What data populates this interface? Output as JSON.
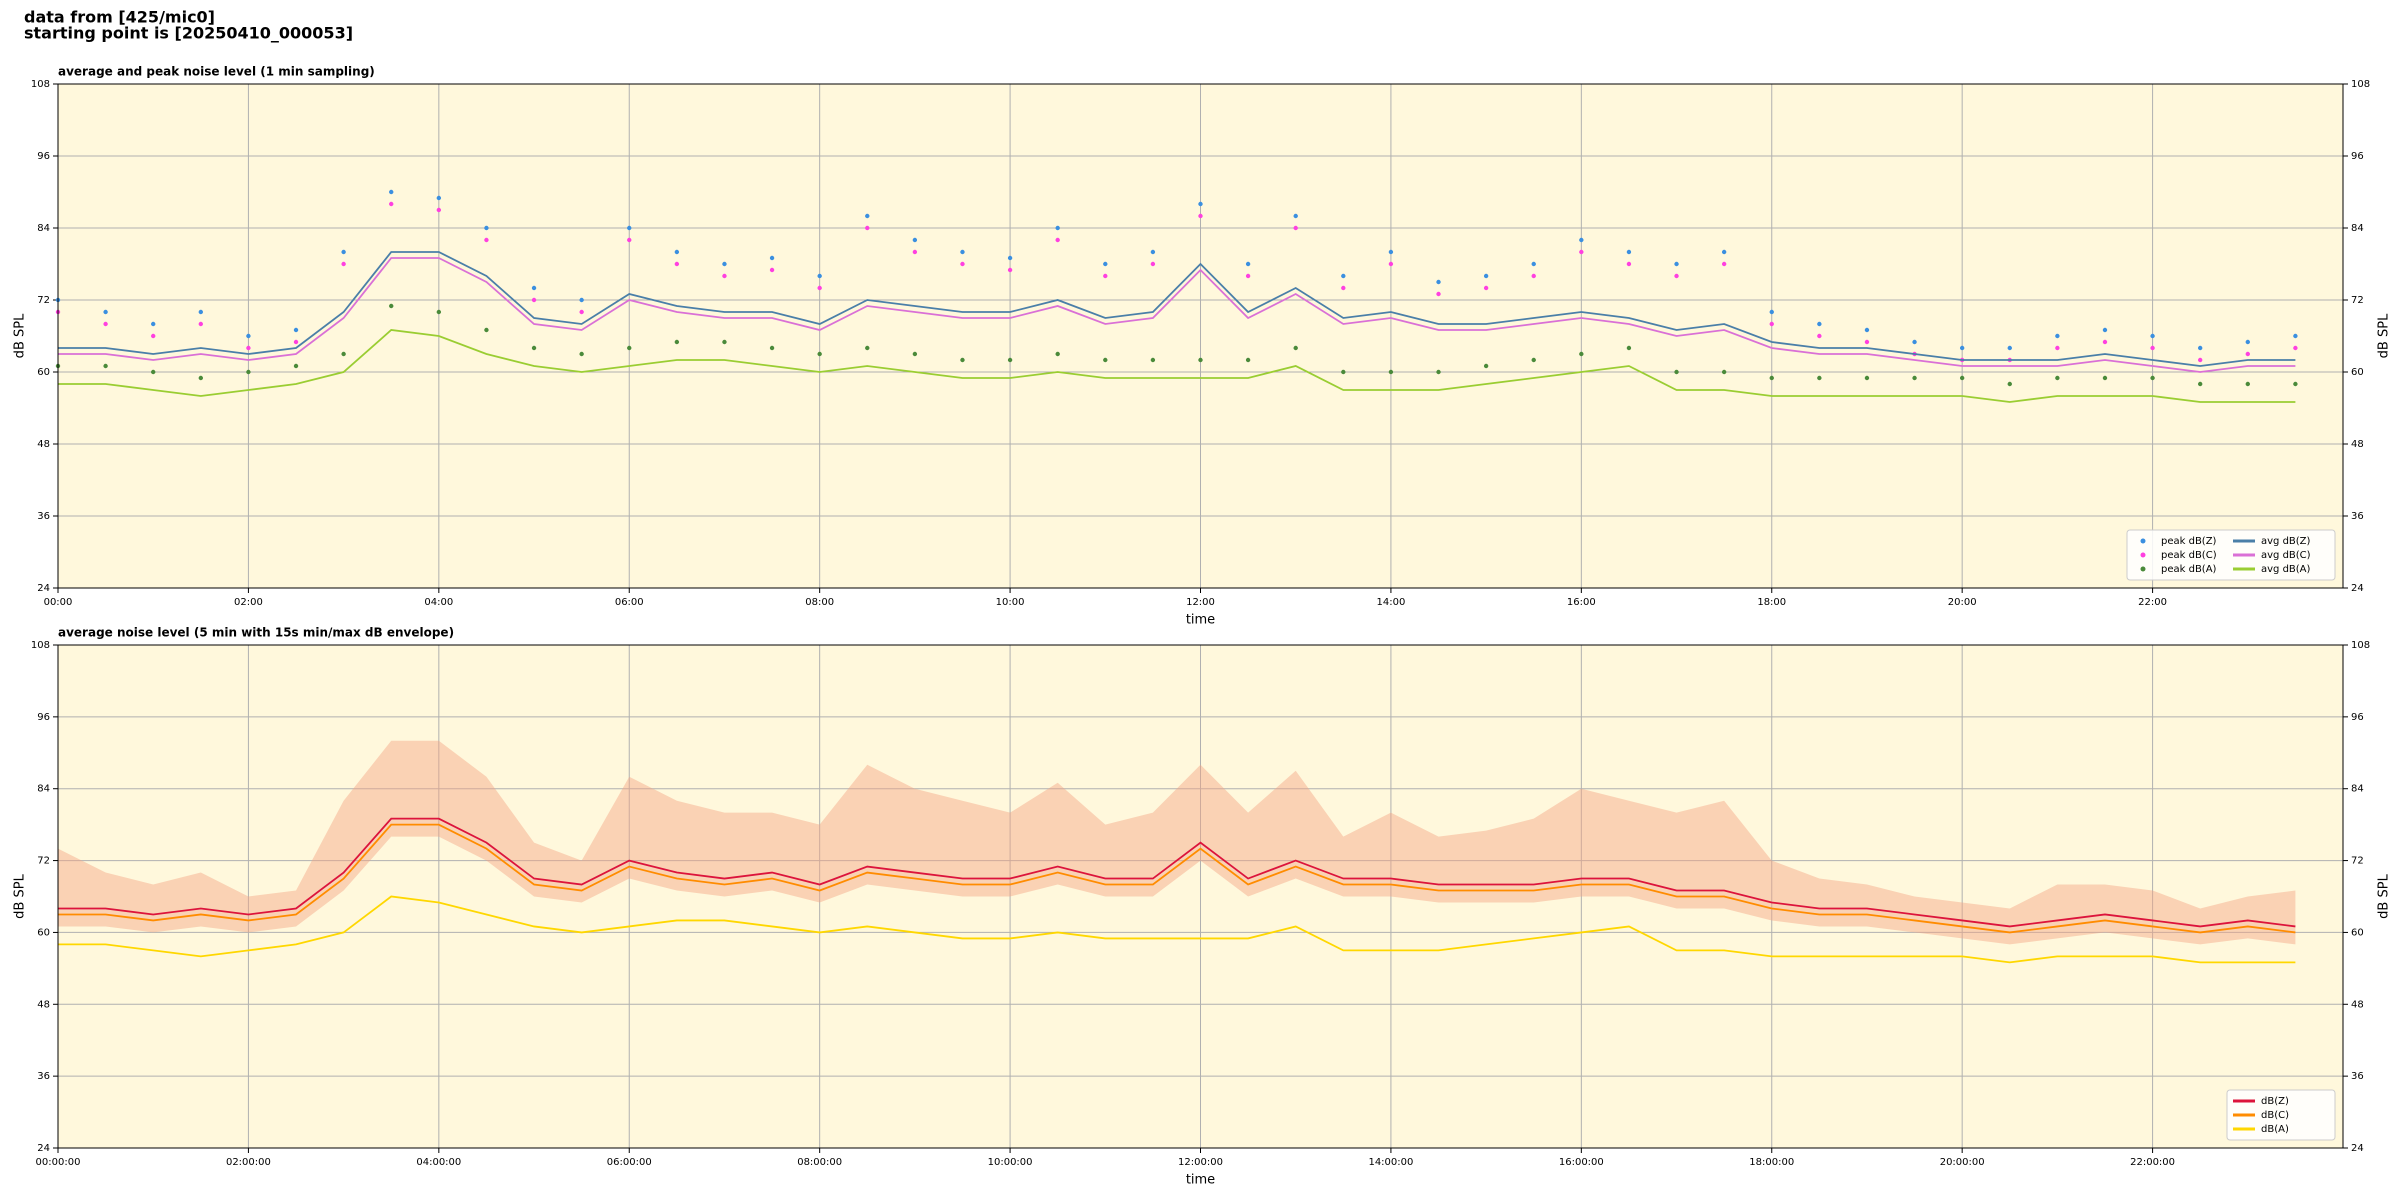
{
  "header": {
    "source": "data from [425/mic0]",
    "start": "starting point is [20250410_000053]"
  },
  "chart_data": [
    {
      "type": "line",
      "title": "average and peak noise level (1 min sampling)",
      "x_label": "time",
      "y_label": "dB SPL",
      "y2_label": "dB SPL",
      "background": "#fff8dc",
      "grid": true,
      "legend": "lower right",
      "legend_columns": 2,
      "xlim": [
        0,
        24
      ],
      "xticks": [
        {
          "value": 0,
          "label": "00:00"
        },
        {
          "value": 2,
          "label": "02:00"
        },
        {
          "value": 4,
          "label": "04:00"
        },
        {
          "value": 6,
          "label": "06:00"
        },
        {
          "value": 8,
          "label": "08:00"
        },
        {
          "value": 10,
          "label": "10:00"
        },
        {
          "value": 12,
          "label": "12:00"
        },
        {
          "value": 14,
          "label": "14:00"
        },
        {
          "value": 16,
          "label": "16:00"
        },
        {
          "value": 18,
          "label": "18:00"
        },
        {
          "value": 20,
          "label": "20:00"
        },
        {
          "value": 22,
          "label": "22:00"
        }
      ],
      "ylim": [
        24,
        108
      ],
      "yticks": [
        24,
        36,
        48,
        60,
        72,
        84,
        96,
        108
      ],
      "y2lim": [
        24,
        108
      ],
      "y2ticks": [
        24,
        36,
        48,
        60,
        72,
        84,
        96,
        108
      ],
      "x": [
        0,
        0.5,
        1,
        1.5,
        2,
        2.5,
        3,
        3.5,
        4,
        4.5,
        5,
        5.5,
        6,
        6.5,
        7,
        7.5,
        8,
        8.5,
        9,
        9.5,
        10,
        10.5,
        11,
        11.5,
        12,
        12.5,
        13,
        13.5,
        14,
        14.5,
        15,
        15.5,
        16,
        16.5,
        17,
        17.5,
        18,
        18.5,
        19,
        19.5,
        20,
        20.5,
        21,
        21.5,
        22,
        22.5,
        23,
        23.5
      ],
      "series": [
        {
          "name": "peak dB(Z)",
          "kind": "scatter",
          "color": "#3a8fe0",
          "values": [
            72,
            70,
            68,
            70,
            66,
            67,
            80,
            90,
            89,
            84,
            74,
            72,
            84,
            80,
            78,
            79,
            76,
            86,
            82,
            80,
            79,
            84,
            78,
            80,
            88,
            78,
            86,
            76,
            80,
            75,
            76,
            78,
            82,
            80,
            78,
            80,
            70,
            68,
            67,
            65,
            64,
            64,
            66,
            67,
            66,
            64,
            65,
            66
          ]
        },
        {
          "name": "peak dB(C)",
          "kind": "scatter",
          "color": "#ff40e0",
          "values": [
            70,
            68,
            66,
            68,
            64,
            65,
            78,
            88,
            87,
            82,
            72,
            70,
            82,
            78,
            76,
            77,
            74,
            84,
            80,
            78,
            77,
            82,
            76,
            78,
            86,
            76,
            84,
            74,
            78,
            73,
            74,
            76,
            80,
            78,
            76,
            78,
            68,
            66,
            65,
            63,
            62,
            62,
            64,
            65,
            64,
            62,
            63,
            64
          ]
        },
        {
          "name": "peak dB(A)",
          "kind": "scatter",
          "color": "#4a8a3a",
          "values": [
            61,
            61,
            60,
            59,
            60,
            61,
            63,
            71,
            70,
            67,
            64,
            63,
            64,
            65,
            65,
            64,
            63,
            64,
            63,
            62,
            62,
            63,
            62,
            62,
            62,
            62,
            64,
            60,
            60,
            60,
            61,
            62,
            63,
            64,
            60,
            60,
            59,
            59,
            59,
            59,
            59,
            58,
            59,
            59,
            59,
            58,
            58,
            58
          ]
        },
        {
          "name": "avg dB(Z)",
          "kind": "line",
          "color": "#4a7fa8",
          "values": [
            64,
            64,
            63,
            64,
            63,
            64,
            70,
            80,
            80,
            76,
            69,
            68,
            73,
            71,
            70,
            70,
            68,
            72,
            71,
            70,
            70,
            72,
            69,
            70,
            78,
            70,
            74,
            69,
            70,
            68,
            68,
            69,
            70,
            69,
            67,
            68,
            65,
            64,
            64,
            63,
            62,
            62,
            62,
            63,
            62,
            61,
            62,
            62
          ]
        },
        {
          "name": "avg dB(C)",
          "kind": "line",
          "color": "#da70d6",
          "values": [
            63,
            63,
            62,
            63,
            62,
            63,
            69,
            79,
            79,
            75,
            68,
            67,
            72,
            70,
            69,
            69,
            67,
            71,
            70,
            69,
            69,
            71,
            68,
            69,
            77,
            69,
            73,
            68,
            69,
            67,
            67,
            68,
            69,
            68,
            66,
            67,
            64,
            63,
            63,
            62,
            61,
            61,
            61,
            62,
            61,
            60,
            61,
            61
          ]
        },
        {
          "name": "avg dB(A)",
          "kind": "line",
          "color": "#9acd32",
          "values": [
            58,
            58,
            57,
            56,
            57,
            58,
            60,
            67,
            66,
            63,
            61,
            60,
            61,
            62,
            62,
            61,
            60,
            61,
            60,
            59,
            59,
            60,
            59,
            59,
            59,
            59,
            61,
            57,
            57,
            57,
            58,
            59,
            60,
            61,
            57,
            57,
            56,
            56,
            56,
            56,
            56,
            55,
            56,
            56,
            56,
            55,
            55,
            55
          ]
        }
      ]
    },
    {
      "type": "line",
      "title": "average noise level (5 min with 15s min/max dB envelope)",
      "x_label": "time",
      "y_label": "dB SPL",
      "y2_label": "dB SPL",
      "background": "#fff8dc",
      "grid": true,
      "legend": "lower right",
      "legend_columns": 1,
      "xlim": [
        0,
        24
      ],
      "xticks": [
        {
          "value": 0,
          "label": "00:00:00"
        },
        {
          "value": 2,
          "label": "02:00:00"
        },
        {
          "value": 4,
          "label": "04:00:00"
        },
        {
          "value": 6,
          "label": "06:00:00"
        },
        {
          "value": 8,
          "label": "08:00:00"
        },
        {
          "value": 10,
          "label": "10:00:00"
        },
        {
          "value": 12,
          "label": "12:00:00"
        },
        {
          "value": 14,
          "label": "14:00:00"
        },
        {
          "value": 16,
          "label": "16:00:00"
        },
        {
          "value": 18,
          "label": "18:00:00"
        },
        {
          "value": 20,
          "label": "20:00:00"
        },
        {
          "value": 22,
          "label": "22:00:00"
        }
      ],
      "ylim": [
        24,
        108
      ],
      "yticks": [
        24,
        36,
        48,
        60,
        72,
        84,
        96,
        108
      ],
      "y2lim": [
        24,
        108
      ],
      "y2ticks": [
        24,
        36,
        48,
        60,
        72,
        84,
        96,
        108
      ],
      "x": [
        0,
        0.5,
        1,
        1.5,
        2,
        2.5,
        3,
        3.5,
        4,
        4.5,
        5,
        5.5,
        6,
        6.5,
        7,
        7.5,
        8,
        8.5,
        9,
        9.5,
        10,
        10.5,
        11,
        11.5,
        12,
        12.5,
        13,
        13.5,
        14,
        14.5,
        15,
        15.5,
        16,
        16.5,
        17,
        17.5,
        18,
        18.5,
        19,
        19.5,
        20,
        20.5,
        21,
        21.5,
        22,
        22.5,
        23,
        23.5
      ],
      "envelope": {
        "color": "#f4a582",
        "upper": [
          74,
          70,
          68,
          70,
          66,
          67,
          82,
          92,
          92,
          86,
          75,
          72,
          86,
          82,
          80,
          80,
          78,
          88,
          84,
          82,
          80,
          85,
          78,
          80,
          88,
          80,
          87,
          76,
          80,
          76,
          77,
          79,
          84,
          82,
          80,
          82,
          72,
          69,
          68,
          66,
          65,
          64,
          68,
          68,
          67,
          64,
          66,
          67
        ],
        "lower": [
          61,
          61,
          60,
          61,
          60,
          61,
          67,
          76,
          76,
          72,
          66,
          65,
          69,
          67,
          66,
          67,
          65,
          68,
          67,
          66,
          66,
          68,
          66,
          66,
          72,
          66,
          69,
          66,
          66,
          65,
          65,
          65,
          66,
          66,
          64,
          64,
          62,
          61,
          61,
          60,
          59,
          58,
          59,
          60,
          59,
          58,
          59,
          58
        ]
      },
      "series": [
        {
          "name": "dB(Z)",
          "kind": "line",
          "color": "#dc143c",
          "values": [
            64,
            64,
            63,
            64,
            63,
            64,
            70,
            79,
            79,
            75,
            69,
            68,
            72,
            70,
            69,
            70,
            68,
            71,
            70,
            69,
            69,
            71,
            69,
            69,
            75,
            69,
            72,
            69,
            69,
            68,
            68,
            68,
            69,
            69,
            67,
            67,
            65,
            64,
            64,
            63,
            62,
            61,
            62,
            63,
            62,
            61,
            62,
            61
          ]
        },
        {
          "name": "dB(C)",
          "kind": "line",
          "color": "#ff8c00",
          "values": [
            63,
            63,
            62,
            63,
            62,
            63,
            69,
            78,
            78,
            74,
            68,
            67,
            71,
            69,
            68,
            69,
            67,
            70,
            69,
            68,
            68,
            70,
            68,
            68,
            74,
            68,
            71,
            68,
            68,
            67,
            67,
            67,
            68,
            68,
            66,
            66,
            64,
            63,
            63,
            62,
            61,
            60,
            61,
            62,
            61,
            60,
            61,
            60
          ]
        },
        {
          "name": "dB(A)",
          "kind": "line",
          "color": "#ffd700",
          "values": [
            58,
            58,
            57,
            56,
            57,
            58,
            60,
            66,
            65,
            63,
            61,
            60,
            61,
            62,
            62,
            61,
            60,
            61,
            60,
            59,
            59,
            60,
            59,
            59,
            59,
            59,
            61,
            57,
            57,
            57,
            58,
            59,
            60,
            61,
            57,
            57,
            56,
            56,
            56,
            56,
            56,
            55,
            56,
            56,
            56,
            55,
            55,
            55
          ]
        }
      ]
    }
  ]
}
